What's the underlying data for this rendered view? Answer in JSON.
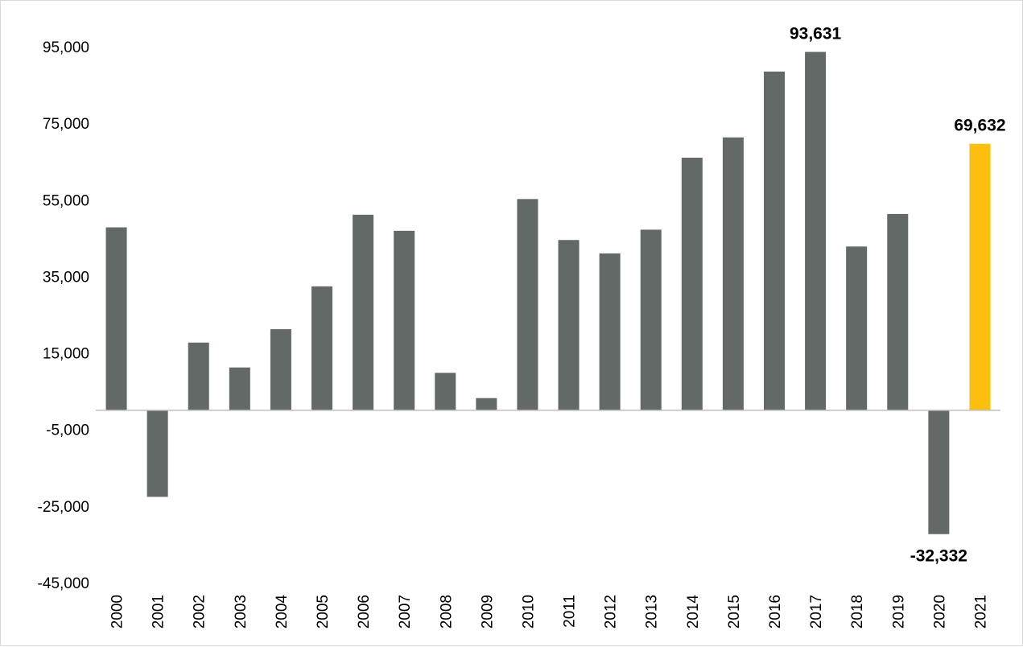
{
  "chart_data": {
    "type": "bar",
    "categories": [
      "2000",
      "2001",
      "2002",
      "2003",
      "2004",
      "2005",
      "2006",
      "2007",
      "2008",
      "2009",
      "2010",
      "2011",
      "2012",
      "2013",
      "2014",
      "2015",
      "2016",
      "2017",
      "2018",
      "2019",
      "2020",
      "2021"
    ],
    "series": [
      {
        "values": [
          47800,
          -22600,
          17700,
          11200,
          21200,
          32400,
          51100,
          46900,
          9800,
          3200,
          55200,
          44500,
          41000,
          47200,
          66000,
          71300,
          88500,
          93631,
          42800,
          51300,
          -32332,
          69632
        ]
      }
    ],
    "data_labels": [
      {
        "category": "2017",
        "text": "93,631"
      },
      {
        "category": "2020",
        "text": "-32,332"
      },
      {
        "category": "2021",
        "text": "69,632"
      }
    ],
    "title": "",
    "xlabel": "",
    "ylabel": "",
    "ylim": [
      -45000,
      105000
    ],
    "yticks": [
      95000,
      75000,
      55000,
      35000,
      15000,
      -5000,
      -25000,
      -45000
    ],
    "ytick_labels": [
      "95,000",
      "75,000",
      "55,000",
      "35,000",
      "15,000",
      "-5,000",
      "-25,000",
      "-45,000"
    ],
    "grid": false,
    "legend": "none",
    "colors": {
      "default_bar": "#636966",
      "highlight_bar": "#fdbf0f",
      "axis_line": "#bfbfbf"
    },
    "highlight_category": "2021"
  }
}
